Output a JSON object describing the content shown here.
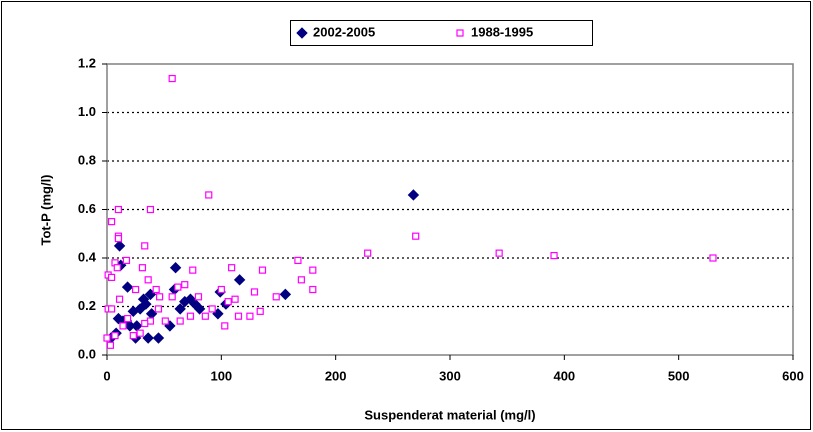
{
  "chart_data": {
    "type": "scatter",
    "x_label": "Suspenderat material (mg/l)",
    "y_label": "Tot-P (mg/l)",
    "xlim": [
      0,
      600
    ],
    "xticks": [
      0,
      100,
      200,
      300,
      400,
      500,
      600
    ],
    "ylim": [
      0,
      1.2
    ],
    "yticks": [
      {
        "value": 0,
        "label": "0.0"
      },
      0.2,
      0.4,
      0.6,
      0.8,
      {
        "value": 1,
        "label": "1.0"
      },
      1.2
    ],
    "grid": true,
    "legend": "top",
    "series": [
      {
        "name": "2002-2005",
        "color": "#000080",
        "marker": "diamond",
        "x": [
          3.5,
          8,
          10,
          11,
          12,
          14,
          17,
          18,
          20,
          23,
          25,
          26,
          29,
          32,
          34,
          36,
          38,
          39,
          45,
          55,
          59,
          60,
          64,
          68,
          73,
          77,
          81,
          97,
          99,
          104,
          116,
          156,
          268
        ],
        "values": [
          0.07,
          0.09,
          0.15,
          0.45,
          0.37,
          0.14,
          0.14,
          0.28,
          0.12,
          0.18,
          0.07,
          0.12,
          0.19,
          0.23,
          0.21,
          0.07,
          0.25,
          0.17,
          0.07,
          0.12,
          0.27,
          0.36,
          0.19,
          0.22,
          0.23,
          0.21,
          0.19,
          0.17,
          0.26,
          0.21,
          0.31,
          0.25,
          0.66
        ]
      },
      {
        "name": "1988-1995",
        "color": "#FF00FF",
        "marker": "square",
        "x": [
          57,
          89,
          10,
          38,
          4,
          10,
          10,
          270,
          228,
          343,
          391,
          530,
          1,
          4,
          7,
          9,
          17,
          33,
          31,
          43,
          57,
          62,
          75,
          109,
          136,
          167,
          180,
          180,
          170,
          148,
          129,
          125,
          134,
          115,
          106,
          100,
          92,
          86,
          80,
          68,
          64,
          51,
          45,
          38,
          33,
          29,
          23,
          18,
          14,
          7,
          3,
          0,
          1,
          4,
          11,
          25,
          36,
          46,
          73,
          103,
          112
        ],
        "values": [
          1.14,
          0.66,
          0.6,
          0.6,
          0.55,
          0.49,
          0.48,
          0.49,
          0.42,
          0.42,
          0.41,
          0.4,
          0.33,
          0.32,
          0.38,
          0.36,
          0.39,
          0.45,
          0.36,
          0.27,
          0.24,
          0.28,
          0.35,
          0.36,
          0.35,
          0.39,
          0.35,
          0.27,
          0.31,
          0.24,
          0.26,
          0.16,
          0.18,
          0.16,
          0.22,
          0.27,
          0.19,
          0.16,
          0.24,
          0.29,
          0.14,
          0.14,
          0.19,
          0.14,
          0.13,
          0.09,
          0.08,
          0.15,
          0.12,
          0.08,
          0.04,
          0.07,
          0.19,
          0.19,
          0.23,
          0.27,
          0.31,
          0.24,
          0.16,
          0.12,
          0.23
        ]
      }
    ]
  }
}
